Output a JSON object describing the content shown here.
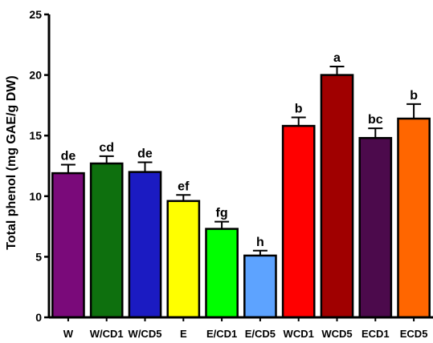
{
  "chart_data": {
    "type": "bar",
    "ylabel": "Total phenol (mg GAE/g DW)",
    "ylim": [
      0,
      25
    ],
    "yticks": [
      0,
      5,
      10,
      15,
      20,
      25
    ],
    "categories": [
      "W",
      "W/CD1",
      "W/CD5",
      "E",
      "E/CD1",
      "E/CD5",
      "WCD1",
      "WCD5",
      "ECD1",
      "ECD5"
    ],
    "values": [
      11.9,
      12.7,
      12.0,
      9.6,
      7.3,
      5.1,
      15.8,
      20.0,
      14.8,
      16.4
    ],
    "errors": [
      0.7,
      0.6,
      0.8,
      0.5,
      0.6,
      0.4,
      0.7,
      0.7,
      0.8,
      1.2
    ],
    "letters": [
      "de",
      "cd",
      "de",
      "ef",
      "fg",
      "h",
      "b",
      "a",
      "bc",
      "b"
    ],
    "colors": [
      "#7A0A7A",
      "#0E700E",
      "#1B1BC2",
      "#FFFF00",
      "#00FF00",
      "#5DA3FF",
      "#FF0000",
      "#A00000",
      "#4C0A4C",
      "#FF6600"
    ],
    "grid": false,
    "legend": "none"
  }
}
